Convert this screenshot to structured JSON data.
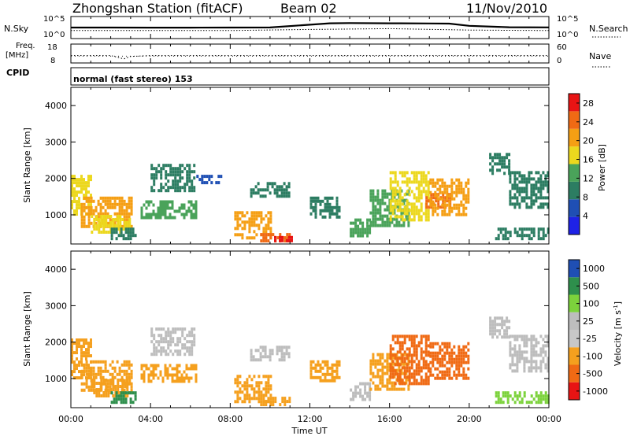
{
  "header": {
    "station": "Zhongshan Station (fitACF)",
    "beam": "Beam 02",
    "date": "11/Nov/2010"
  },
  "noise_panel": {
    "left_label": "N.Sky",
    "right_label": "N.Search",
    "left_ticks": [
      "10^5",
      "10^0"
    ],
    "right_ticks": [
      "10^5",
      "10^0"
    ]
  },
  "freq_panel": {
    "left_label_line1": "Freq.",
    "left_label_line2": "[MHz]",
    "left_ticks": [
      "18",
      "8"
    ],
    "right_label": "Nave",
    "right_ticks": [
      "60",
      "0"
    ]
  },
  "cpid": {
    "label": "CPID",
    "mode": "normal (fast stereo) 153"
  },
  "time_axis": {
    "label": "Time UT",
    "ticks": [
      "00:00",
      "04:00",
      "08:00",
      "12:00",
      "16:00",
      "20:00",
      "00:00"
    ]
  },
  "colors": {
    "power": [
      "#1e22e6",
      "#1f4fb4",
      "#2c7d62",
      "#4aa35a",
      "#ecd81e",
      "#f59f14",
      "#f06a14",
      "#e81414"
    ],
    "velocity": [
      "#e81414",
      "#f06a14",
      "#f5a01e",
      "#c8c8c8",
      "#bdbdbd",
      "#7cd23c",
      "#2e8f4c",
      "#1f4fb4"
    ]
  },
  "chart_data": [
    {
      "type": "line",
      "title": "",
      "xlabel": "",
      "ylabel": "N.Sky",
      "yscale": "log",
      "ylim": [
        1,
        100000
      ],
      "xlim": [
        "00:00",
        "24:00"
      ],
      "series": [
        {
          "name": "N.Sky",
          "x": [
            "00:00",
            "02:00",
            "04:00",
            "06:00",
            "08:00",
            "10:00",
            "12:00",
            "13:00",
            "14:00",
            "16:00",
            "18:00",
            "19:00",
            "20:00",
            "22:00",
            "24:00"
          ],
          "values": [
            400,
            400,
            380,
            380,
            400,
            420,
            2500,
            6000,
            7000,
            6000,
            5500,
            5000,
            1200,
            500,
            450
          ]
        },
        {
          "name": "N.Search",
          "x": [
            "00:00",
            "04:00",
            "08:00",
            "12:00",
            "16:00",
            "20:00",
            "24:00"
          ],
          "values": [
            60,
            60,
            60,
            120,
            200,
            80,
            60
          ]
        }
      ]
    },
    {
      "type": "scatter",
      "title": "",
      "xlabel": "",
      "ylabel": "Freq. [MHz]",
      "ylim": [
        8,
        18
      ],
      "y2lim": [
        0,
        60
      ],
      "xlim": [
        "00:00",
        "24:00"
      ],
      "series": [
        {
          "name": "Freq.",
          "x": [
            "00:00",
            "02:00",
            "02:40",
            "03:00",
            "04:00",
            "08:00",
            "12:00",
            "16:00",
            "20:00",
            "24:00"
          ],
          "values": [
            12.0,
            12.0,
            10.0,
            11.5,
            12.0,
            12.0,
            12.0,
            12.0,
            12.0,
            12.0
          ]
        },
        {
          "name": "Nave",
          "x": [
            "00:00",
            "06:00",
            "12:00",
            "18:00",
            "24:00"
          ],
          "values": [
            22,
            22,
            22,
            22,
            22
          ]
        }
      ]
    },
    {
      "type": "heatmap",
      "title": "",
      "xlabel": "",
      "ylabel": "Slant Range [km]",
      "xlim": [
        "00:00",
        "24:00"
      ],
      "ylim": [
        200,
        4500
      ],
      "yticks": [
        1000,
        2000,
        3000,
        4000
      ],
      "colorbar": {
        "label": "Power [dB]",
        "ticks": [
          4,
          8,
          12,
          16,
          20,
          24,
          28
        ],
        "range": [
          0,
          30
        ]
      },
      "regions": [
        {
          "t0": 0.0,
          "t1": 1.0,
          "r0": 1000,
          "r1": 2100,
          "value": 18
        },
        {
          "t0": 0.5,
          "t1": 3.0,
          "r0": 700,
          "r1": 1500,
          "value": 22
        },
        {
          "t0": 1.0,
          "t1": 3.0,
          "r0": 500,
          "r1": 1000,
          "value": 16
        },
        {
          "t0": 2.0,
          "t1": 3.3,
          "r0": 350,
          "r1": 650,
          "value": 10
        },
        {
          "t0": 3.5,
          "t1": 6.3,
          "r0": 900,
          "r1": 1400,
          "value": 12
        },
        {
          "t0": 4.0,
          "t1": 6.2,
          "r0": 1700,
          "r1": 2400,
          "value": 8
        },
        {
          "t0": 6.3,
          "t1": 7.6,
          "r0": 1900,
          "r1": 2100,
          "value": 6
        },
        {
          "t0": 8.2,
          "t1": 10.0,
          "r0": 400,
          "r1": 1100,
          "value": 20
        },
        {
          "t0": 9.5,
          "t1": 11.0,
          "r0": 250,
          "r1": 500,
          "value": 26
        },
        {
          "t0": 10.2,
          "t1": 11.1,
          "r0": 250,
          "r1": 420,
          "value": 30
        },
        {
          "t0": 9.0,
          "t1": 11.0,
          "r0": 1500,
          "r1": 1900,
          "value": 8
        },
        {
          "t0": 12.0,
          "t1": 13.5,
          "r0": 900,
          "r1": 1500,
          "value": 10
        },
        {
          "t0": 14.0,
          "t1": 15.0,
          "r0": 400,
          "r1": 900,
          "value": 12
        },
        {
          "t0": 15.0,
          "t1": 17.0,
          "r0": 700,
          "r1": 1700,
          "value": 14
        },
        {
          "t0": 16.0,
          "t1": 18.0,
          "r0": 900,
          "r1": 2200,
          "value": 18
        },
        {
          "t0": 17.8,
          "t1": 19.0,
          "r0": 1200,
          "r1": 1600,
          "value": 26
        },
        {
          "t0": 18.0,
          "t1": 20.0,
          "r0": 1000,
          "r1": 2000,
          "value": 20
        },
        {
          "t0": 21.0,
          "t1": 22.0,
          "r0": 2100,
          "r1": 2700,
          "value": 10
        },
        {
          "t0": 22.0,
          "t1": 24.0,
          "r0": 1200,
          "r1": 2200,
          "value": 8
        },
        {
          "t0": 21.3,
          "t1": 24.0,
          "r0": 350,
          "r1": 650,
          "value": 8
        }
      ]
    },
    {
      "type": "heatmap",
      "title": "",
      "xlabel": "Time UT",
      "ylabel": "Slant Range [km]",
      "xlim": [
        "00:00",
        "24:00"
      ],
      "ylim": [
        200,
        4500
      ],
      "yticks": [
        1000,
        2000,
        3000,
        4000
      ],
      "colorbar": {
        "label": "Velocity [m s^-1]",
        "ticks": [
          -1000,
          -500,
          -100,
          -25,
          25,
          100,
          500,
          1000
        ],
        "range": [
          -1200,
          1200
        ]
      },
      "regions": [
        {
          "t0": 0.0,
          "t1": 1.0,
          "r0": 1000,
          "r1": 2100,
          "value": -200
        },
        {
          "t0": 0.5,
          "t1": 3.0,
          "r0": 700,
          "r1": 1500,
          "value": -300
        },
        {
          "t0": 1.0,
          "t1": 3.0,
          "r0": 500,
          "r1": 1000,
          "value": -150
        },
        {
          "t0": 2.0,
          "t1": 3.3,
          "r0": 350,
          "r1": 650,
          "value": 150
        },
        {
          "t0": 3.5,
          "t1": 6.3,
          "r0": 900,
          "r1": 1400,
          "value": -200
        },
        {
          "t0": 4.0,
          "t1": 6.2,
          "r0": 1700,
          "r1": 2400,
          "value": 0
        },
        {
          "t0": 8.2,
          "t1": 10.0,
          "r0": 400,
          "r1": 1100,
          "value": -300
        },
        {
          "t0": 9.5,
          "t1": 11.0,
          "r0": 250,
          "r1": 500,
          "value": -400
        },
        {
          "t0": 9.0,
          "t1": 11.0,
          "r0": 1500,
          "r1": 1900,
          "value": 0
        },
        {
          "t0": 12.0,
          "t1": 13.5,
          "r0": 900,
          "r1": 1500,
          "value": -300
        },
        {
          "t0": 14.0,
          "t1": 15.0,
          "r0": 400,
          "r1": 900,
          "value": 0
        },
        {
          "t0": 15.0,
          "t1": 17.0,
          "r0": 700,
          "r1": 1700,
          "value": -300
        },
        {
          "t0": 16.0,
          "t1": 18.0,
          "r0": 900,
          "r1": 2200,
          "value": -500
        },
        {
          "t0": 18.0,
          "t1": 20.0,
          "r0": 1000,
          "r1": 2000,
          "value": -600
        },
        {
          "t0": 21.0,
          "t1": 22.0,
          "r0": 2100,
          "r1": 2700,
          "value": 0
        },
        {
          "t0": 22.0,
          "t1": 24.0,
          "r0": 1200,
          "r1": 2200,
          "value": 0
        },
        {
          "t0": 21.3,
          "t1": 24.0,
          "r0": 350,
          "r1": 650,
          "value": 100
        }
      ]
    }
  ]
}
